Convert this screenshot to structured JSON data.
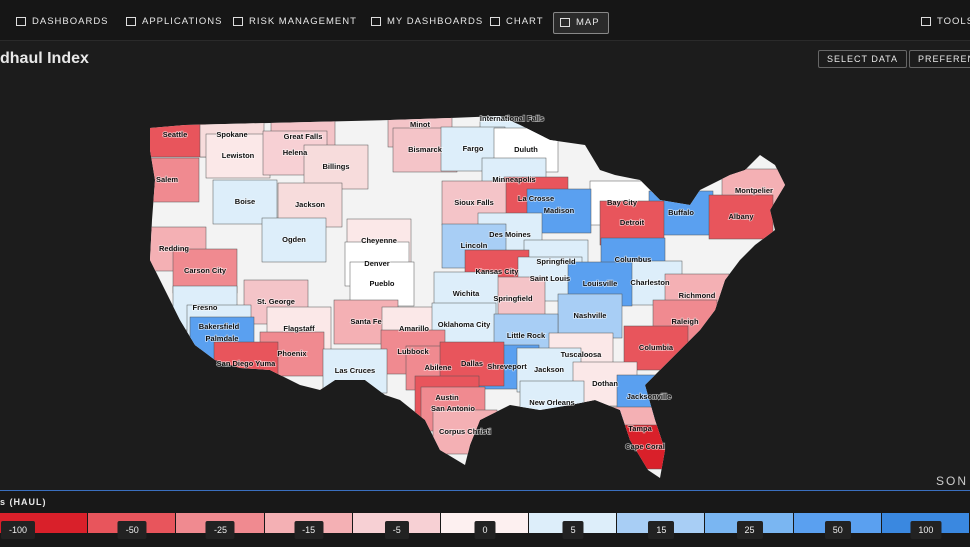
{
  "nav": {
    "items": [
      "DASHBOARDS",
      "APPLICATIONS",
      "RISK MANAGEMENT",
      "MY DASHBOARDS",
      "CHART",
      "MAP"
    ],
    "active": 5,
    "tools": "TOOLS"
  },
  "header": {
    "title": "dhaul Index",
    "buttons": [
      "SELECT DATA",
      "PREFERENC"
    ]
  },
  "map": {
    "brand": "SON",
    "cities": [
      {
        "label": "Seattle",
        "color": "#e8555c"
      },
      {
        "label": "Spokane",
        "color": "#f7dcdc"
      },
      {
        "label": "Great Falls",
        "color": "#f4c4c8"
      },
      {
        "label": "Minot",
        "color": "#f4c4c8"
      },
      {
        "label": "International Falls",
        "color": "#ddeefa"
      },
      {
        "label": "Lewiston",
        "color": "#fbe8e8"
      },
      {
        "label": "Helena",
        "color": "#f7d0d4"
      },
      {
        "label": "Bismarck",
        "color": "#f4c4c8"
      },
      {
        "label": "Fargo",
        "color": "#ddeefa"
      },
      {
        "label": "Duluth",
        "color": "#ffffff"
      },
      {
        "label": "Billings",
        "color": "#f7dcdc"
      },
      {
        "label": "Salem",
        "color": "#f08a90"
      },
      {
        "label": "Minneapolis",
        "color": "#ddeefa"
      },
      {
        "label": "Montpelier",
        "color": "#f4b0b4"
      },
      {
        "label": "La Crosse",
        "color": "#e8555c"
      },
      {
        "label": "Bay City",
        "color": "#ffffff"
      },
      {
        "label": "Boise",
        "color": "#ddeefa"
      },
      {
        "label": "Jackson",
        "color": "#f7dcdc"
      },
      {
        "label": "Sioux Falls",
        "color": "#f4c4c8"
      },
      {
        "label": "Madison",
        "color": "#5aa0f0"
      },
      {
        "label": "Buffalo",
        "color": "#5aa0f0"
      },
      {
        "label": "Albany",
        "color": "#e8555c"
      },
      {
        "label": "Detroit",
        "color": "#e8555c"
      },
      {
        "label": "Des Moines",
        "color": "#ddeefa"
      },
      {
        "label": "Redding",
        "color": "#f4b0b4"
      },
      {
        "label": "Ogden",
        "color": "#ddeefa"
      },
      {
        "label": "Cheyenne",
        "color": "#fbe8e8"
      },
      {
        "label": "Lincoln",
        "color": "#a8cef5"
      },
      {
        "label": "Columbus",
        "color": "#5aa0f0"
      },
      {
        "label": "Springfield",
        "color": "#ddeefa"
      },
      {
        "label": "Denver",
        "color": "#ffffff"
      },
      {
        "label": "Kansas City",
        "color": "#e8555c"
      },
      {
        "label": "Carson City",
        "color": "#f08a90"
      },
      {
        "label": "Saint Louis",
        "color": "#ddeefa"
      },
      {
        "label": "Charleston",
        "color": "#ddeefa"
      },
      {
        "label": "Pueblo",
        "color": "#ffffff"
      },
      {
        "label": "Louisville",
        "color": "#5aa0f0"
      },
      {
        "label": "Springfield",
        "color": "#f4c4c8"
      },
      {
        "label": "Wichita",
        "color": "#ddeefa"
      },
      {
        "label": "Richmond",
        "color": "#f4b0b4"
      },
      {
        "label": "St. George",
        "color": "#f4c4c8"
      },
      {
        "label": "Fresno",
        "color": "#ddeefa"
      },
      {
        "label": "Flagstaff",
        "color": "#fbe8e8"
      },
      {
        "label": "Santa Fe",
        "color": "#f4b0b4"
      },
      {
        "label": "Amarillo",
        "color": "#fbe8e8"
      },
      {
        "label": "Oklahoma City",
        "color": "#ddeefa"
      },
      {
        "label": "Nashville",
        "color": "#a8cef5"
      },
      {
        "label": "Raleigh",
        "color": "#f08a90"
      },
      {
        "label": "Bakersfield",
        "color": "#ddeefa"
      },
      {
        "label": "Little Rock",
        "color": "#a8cef5"
      },
      {
        "label": "Palmdale",
        "color": "#5aa0f0"
      },
      {
        "label": "Columbia",
        "color": "#e8555c"
      },
      {
        "label": "Phoenix",
        "color": "#f08a90"
      },
      {
        "label": "Lubbock",
        "color": "#f08a90"
      },
      {
        "label": "Tuscaloosa",
        "color": "#fbe8e8"
      },
      {
        "label": "San Diego Yuma",
        "color": "#e8555c"
      },
      {
        "label": "Las Cruces",
        "color": "#ddeefa"
      },
      {
        "label": "Abilene",
        "color": "#f08a90"
      },
      {
        "label": "Shreveport",
        "color": "#5aa0f0"
      },
      {
        "label": "Jackson",
        "color": "#ddeefa"
      },
      {
        "label": "Dallas",
        "color": "#e8555c"
      },
      {
        "label": "Dothan",
        "color": "#fbe8e8"
      },
      {
        "label": "Jacksonville",
        "color": "#5aa0f0"
      },
      {
        "label": "Austin",
        "color": "#e8555c"
      },
      {
        "label": "New Orleans",
        "color": "#ddeefa"
      },
      {
        "label": "San Antonio",
        "color": "#f08a90"
      },
      {
        "label": "Corpus Christi",
        "color": "#f4b0b4"
      },
      {
        "label": "Tampa",
        "color": "#f4b0b4"
      },
      {
        "label": "Cape Coral",
        "color": "#d9202a"
      }
    ]
  },
  "legend": {
    "title": "s (HAUL)",
    "items": [
      {
        "label": -100,
        "color": "#d9202a"
      },
      {
        "label": -50,
        "color": "#e8555c"
      },
      {
        "label": -25,
        "color": "#f08a90"
      },
      {
        "label": -15,
        "color": "#f4b0b4"
      },
      {
        "label": -5,
        "color": "#f7d0d4"
      },
      {
        "label": 0,
        "color": "#fdf0f0"
      },
      {
        "label": 5,
        "color": "#ddeefa"
      },
      {
        "label": 15,
        "color": "#a8cef5"
      },
      {
        "label": 25,
        "color": "#7ab6f2"
      },
      {
        "label": 50,
        "color": "#5aa0f0"
      },
      {
        "label": 100,
        "color": "#3a88e0"
      }
    ]
  }
}
